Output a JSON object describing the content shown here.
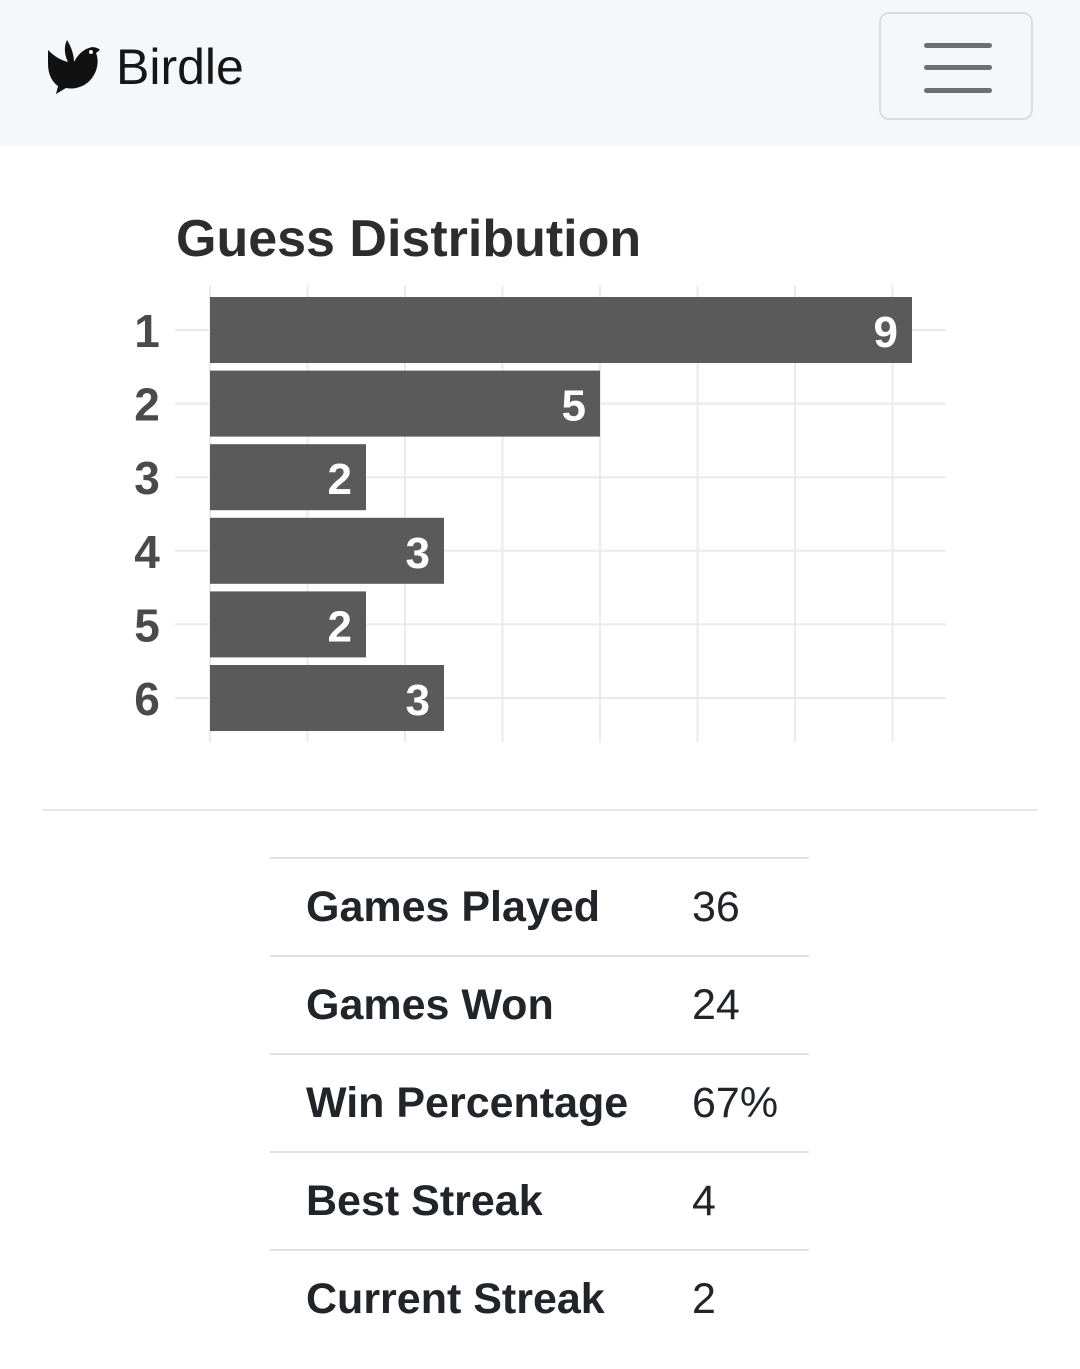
{
  "navbar": {
    "brand_text": "Birdle",
    "brand_icon": "dove-icon",
    "menu_icon": "hamburger-menu-icon"
  },
  "chart_data": {
    "type": "bar",
    "orientation": "horizontal",
    "title": "Guess Distribution",
    "categories": [
      "1",
      "2",
      "3",
      "4",
      "5",
      "6"
    ],
    "values": [
      9,
      5,
      2,
      3,
      2,
      3
    ],
    "xlim": [
      0,
      9
    ],
    "grid": true,
    "bar_color": "#5a5a5a",
    "label_color": "#ffffff"
  },
  "stats": [
    {
      "label": "Games Played",
      "value": "36"
    },
    {
      "label": "Games Won",
      "value": "24"
    },
    {
      "label": "Win Percentage",
      "value": "67%"
    },
    {
      "label": "Best Streak",
      "value": "4"
    },
    {
      "label": "Current Streak",
      "value": "2"
    }
  ]
}
